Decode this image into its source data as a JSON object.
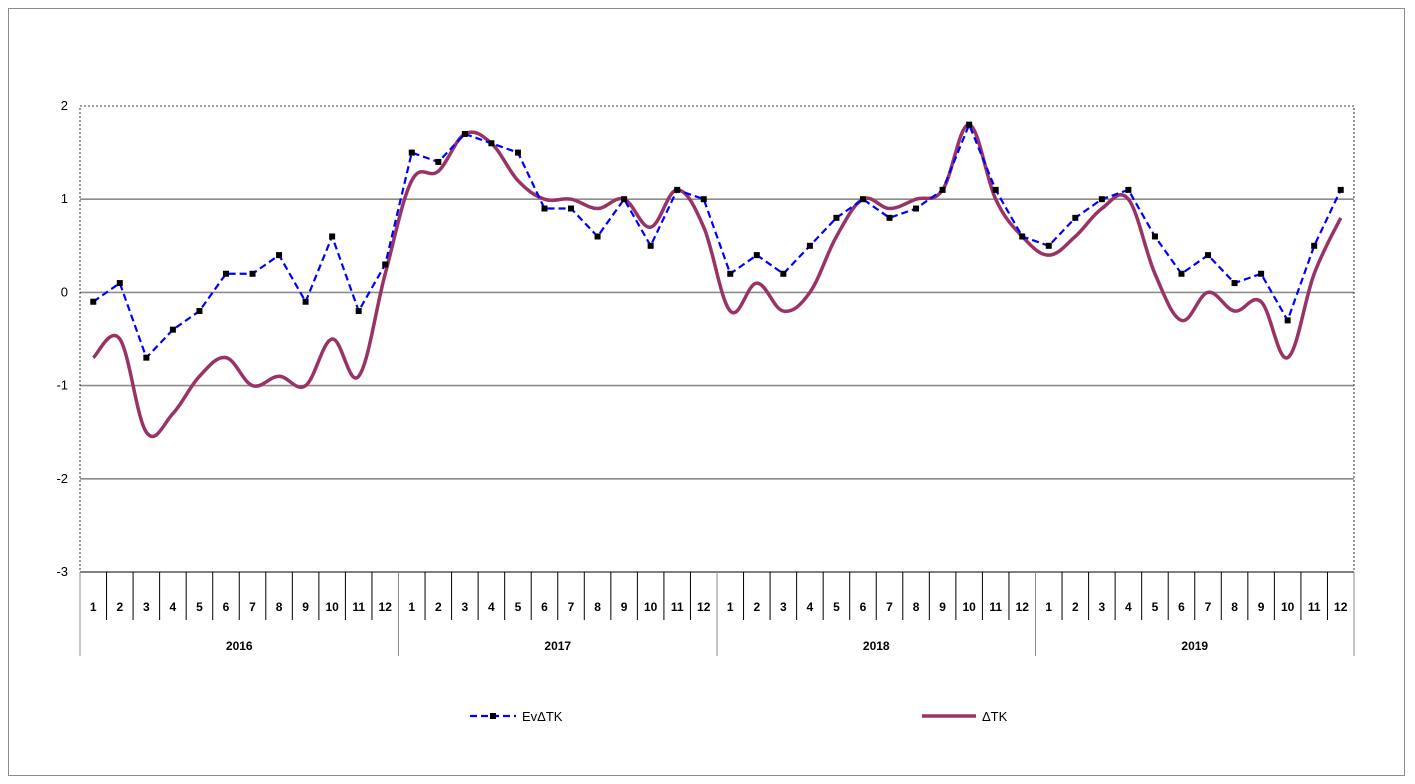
{
  "chart_data": {
    "type": "line",
    "title": "",
    "xlabel": "",
    "ylabel": "",
    "ylim": [
      -3,
      2
    ],
    "yticks": [
      -3,
      -2,
      -1,
      0,
      1,
      2
    ],
    "grid": true,
    "legend_position": "bottom",
    "month_labels": [
      "1",
      "2",
      "3",
      "4",
      "5",
      "6",
      "7",
      "8",
      "9",
      "10",
      "11",
      "12"
    ],
    "years": [
      "2016",
      "2017",
      "2018",
      "2019"
    ],
    "series": [
      {
        "name": "EvΔTK",
        "color": "#0000ff",
        "style": "dashed-with-square-markers",
        "values": [
          -0.1,
          0.1,
          -0.7,
          -0.4,
          -0.2,
          0.2,
          0.2,
          0.4,
          -0.1,
          0.6,
          -0.2,
          0.3,
          1.5,
          1.4,
          1.7,
          1.6,
          1.5,
          0.9,
          0.9,
          0.6,
          1.0,
          0.5,
          1.1,
          1.0,
          0.2,
          0.4,
          0.2,
          0.5,
          0.8,
          1.0,
          0.8,
          0.9,
          1.1,
          1.8,
          1.1,
          0.6,
          0.5,
          0.8,
          1.0,
          1.1,
          0.6,
          0.2,
          0.4,
          0.1,
          0.2,
          -0.3,
          0.5,
          1.1
        ]
      },
      {
        "name": "ΔTK",
        "color": "#993366",
        "style": "smooth-solid",
        "values": [
          -0.7,
          -0.5,
          -1.5,
          -1.3,
          -0.9,
          -0.7,
          -1.0,
          -0.9,
          -1.0,
          -0.5,
          -0.9,
          0.2,
          1.2,
          1.3,
          1.7,
          1.6,
          1.2,
          1.0,
          1.0,
          0.9,
          1.0,
          0.7,
          1.1,
          0.7,
          -0.2,
          0.1,
          -0.2,
          0.0,
          0.6,
          1.0,
          0.9,
          1.0,
          1.1,
          1.8,
          1.0,
          0.6,
          0.4,
          0.6,
          0.9,
          1.0,
          0.2,
          -0.3,
          0.0,
          -0.2,
          -0.1,
          -0.7,
          0.2,
          0.8
        ]
      }
    ]
  }
}
